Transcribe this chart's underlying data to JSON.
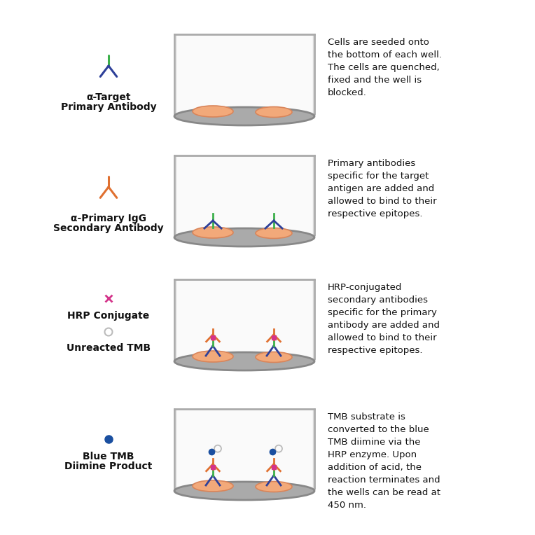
{
  "background_color": "#ffffff",
  "well_fill": "#F5F5F5",
  "well_border": "#AAAAAA",
  "well_bottom_fill": "#BBBBBB",
  "cell_fill": "#F2A97A",
  "cell_edge": "#D9855A",
  "green": "#3CB04A",
  "blue": "#2E4099",
  "orange": "#E07030",
  "pink": "#D4348A",
  "blue_tmb": "#1A4FA0",
  "grey": "#BBBBBB",
  "text_color": "#111111",
  "rows": [
    {
      "legend_type": "primary_ab",
      "labels": [
        "α-Target",
        "Primary Antibody"
      ],
      "description": "Cells are seeded onto\nthe bottom of each well.\nThe cells are quenched,\nfixed and the well is\nblocked.",
      "well_content": "cells_only"
    },
    {
      "legend_type": "secondary_ab",
      "labels": [
        "α-Primary IgG",
        "Secondary Antibody"
      ],
      "description": "Primary antibodies\nspecific for the target\nantigen are added and\nallowed to bind to their\nrespective epitopes.",
      "well_content": "primary_bound"
    },
    {
      "legend_type": "hrp_tmb",
      "labels": [
        "HRP Conjugate",
        "Unreacted TMB"
      ],
      "description": "HRP-conjugated\nsecondary antibodies\nspecific for the primary\nantibody are added and\nallowed to bind to their\nrespective epitopes.",
      "well_content": "secondary_bound"
    },
    {
      "legend_type": "blue_tmb",
      "labels": [
        "Blue TMB",
        "Diimine Product"
      ],
      "description": "TMB substrate is\nconverted to the blue\nTMB diimine via the\nHRP enzyme. Upon\naddition of acid, the\nreaction terminates and\nthe wells can be read at\n450 nm.",
      "well_content": "tmb_converted"
    }
  ]
}
